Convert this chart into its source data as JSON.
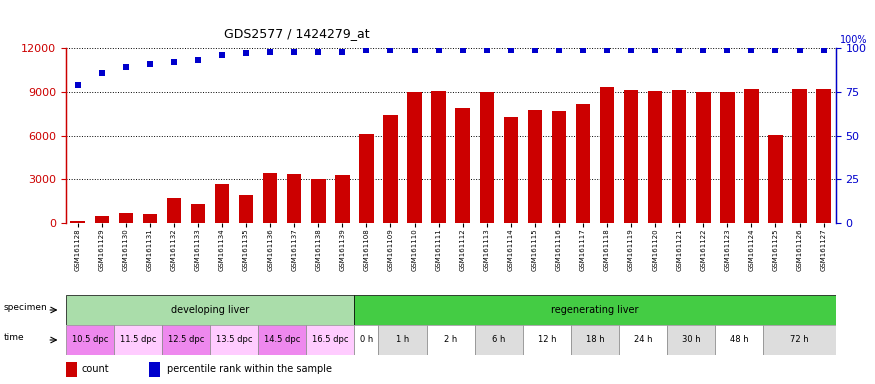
{
  "title": "GDS2577 / 1424279_at",
  "samples": [
    "GSM161128",
    "GSM161129",
    "GSM161130",
    "GSM161131",
    "GSM161132",
    "GSM161133",
    "GSM161134",
    "GSM161135",
    "GSM161136",
    "GSM161137",
    "GSM161138",
    "GSM161139",
    "GSM161108",
    "GSM161109",
    "GSM161110",
    "GSM161111",
    "GSM161112",
    "GSM161113",
    "GSM161114",
    "GSM161115",
    "GSM161116",
    "GSM161117",
    "GSM161118",
    "GSM161119",
    "GSM161120",
    "GSM161121",
    "GSM161122",
    "GSM161123",
    "GSM161124",
    "GSM161125",
    "GSM161126",
    "GSM161127"
  ],
  "counts": [
    120,
    450,
    700,
    620,
    1700,
    1300,
    2700,
    1900,
    3400,
    3350,
    3050,
    3300,
    6100,
    7400,
    8950,
    9050,
    7900,
    9000,
    7250,
    7750,
    7700,
    8150,
    9300,
    9100,
    9050,
    9100,
    9000,
    8950,
    9200,
    6050,
    9200,
    9200
  ],
  "percentiles": [
    79,
    86,
    89,
    91,
    92,
    93,
    96,
    97,
    98,
    98,
    98,
    98,
    99,
    99,
    99,
    99,
    99,
    99,
    99,
    99,
    99,
    99,
    99,
    99,
    99,
    99,
    99,
    99,
    99,
    99,
    99,
    99
  ],
  "bar_color": "#cc0000",
  "dot_color": "#0000cc",
  "ylim_left": [
    0,
    12000
  ],
  "ylim_right": [
    0,
    100
  ],
  "yticks_left": [
    0,
    3000,
    6000,
    9000,
    12000
  ],
  "yticks_right": [
    0,
    25,
    50,
    75,
    100
  ],
  "specimen_groups": [
    {
      "label": "developing liver",
      "start": 0,
      "end": 12,
      "color": "#aaddaa"
    },
    {
      "label": "regenerating liver",
      "start": 12,
      "end": 32,
      "color": "#44cc44"
    }
  ],
  "time_groups": [
    {
      "label": "10.5 dpc",
      "start": 0,
      "end": 2,
      "color": "#ee88ee"
    },
    {
      "label": "11.5 dpc",
      "start": 2,
      "end": 4,
      "color": "#ffccff"
    },
    {
      "label": "12.5 dpc",
      "start": 4,
      "end": 6,
      "color": "#ee88ee"
    },
    {
      "label": "13.5 dpc",
      "start": 6,
      "end": 8,
      "color": "#ffccff"
    },
    {
      "label": "14.5 dpc",
      "start": 8,
      "end": 10,
      "color": "#ee88ee"
    },
    {
      "label": "16.5 dpc",
      "start": 10,
      "end": 12,
      "color": "#ffccff"
    },
    {
      "label": "0 h",
      "start": 12,
      "end": 13,
      "color": "#ffffff"
    },
    {
      "label": "1 h",
      "start": 13,
      "end": 15,
      "color": "#dddddd"
    },
    {
      "label": "2 h",
      "start": 15,
      "end": 17,
      "color": "#ffffff"
    },
    {
      "label": "6 h",
      "start": 17,
      "end": 19,
      "color": "#dddddd"
    },
    {
      "label": "12 h",
      "start": 19,
      "end": 21,
      "color": "#ffffff"
    },
    {
      "label": "18 h",
      "start": 21,
      "end": 23,
      "color": "#dddddd"
    },
    {
      "label": "24 h",
      "start": 23,
      "end": 25,
      "color": "#ffffff"
    },
    {
      "label": "30 h",
      "start": 25,
      "end": 27,
      "color": "#dddddd"
    },
    {
      "label": "48 h",
      "start": 27,
      "end": 29,
      "color": "#ffffff"
    },
    {
      "label": "72 h",
      "start": 29,
      "end": 32,
      "color": "#dddddd"
    }
  ],
  "fig_width": 8.75,
  "fig_height": 3.84,
  "dpi": 100
}
